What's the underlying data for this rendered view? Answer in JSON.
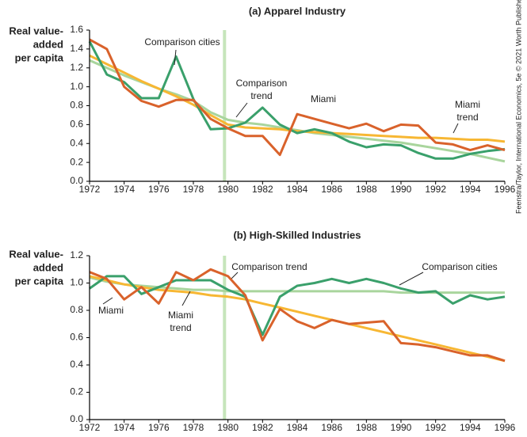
{
  "source_note": "Feenstra/Taylor, International Economics, 5e © 2021 Worth Publishers",
  "chart_data": [
    {
      "type": "line",
      "title": "(a) Apparel Industry",
      "y_label": [
        "Real value-",
        "added",
        "per capita"
      ],
      "x": [
        1972,
        1973,
        1974,
        1975,
        1976,
        1977,
        1978,
        1979,
        1980,
        1981,
        1982,
        1983,
        1984,
        1985,
        1986,
        1987,
        1988,
        1989,
        1990,
        1991,
        1992,
        1993,
        1994,
        1995,
        1996
      ],
      "xlim": [
        1972,
        1996
      ],
      "xticks": [
        1972,
        1974,
        1976,
        1978,
        1980,
        1982,
        1984,
        1986,
        1988,
        1990,
        1992,
        1994,
        1996
      ],
      "ylim": [
        0,
        1.6
      ],
      "yticks": [
        {
          "value": 0,
          "label": "0.0"
        },
        0.2,
        0.4,
        0.6,
        0.8,
        {
          "value": 1,
          "label": "1.0"
        },
        1.2,
        1.4,
        1.6
      ],
      "highlight_x": 1979.8,
      "highlight_color": "#c6e5bb",
      "series": [
        {
          "name": "Comparison trend",
          "color": "#a9d59d",
          "values": [
            1.28,
            1.2,
            1.12,
            1.05,
            0.98,
            0.92,
            0.85,
            0.73,
            0.65,
            0.62,
            0.6,
            0.57,
            0.54,
            0.51,
            0.49,
            0.47,
            0.45,
            0.43,
            0.41,
            0.38,
            0.35,
            0.32,
            0.29,
            0.25,
            0.21
          ]
        },
        {
          "name": "Miami trend",
          "color": "#f7b733",
          "values": [
            1.33,
            1.24,
            1.15,
            1.06,
            0.98,
            0.9,
            0.81,
            0.7,
            0.6,
            0.57,
            0.56,
            0.55,
            0.53,
            0.52,
            0.51,
            0.5,
            0.49,
            0.48,
            0.47,
            0.46,
            0.46,
            0.45,
            0.44,
            0.44,
            0.42
          ]
        },
        {
          "name": "Comparison cities",
          "color": "#3aa06b",
          "values": [
            1.48,
            1.13,
            1.05,
            0.88,
            0.88,
            1.32,
            0.87,
            0.55,
            0.56,
            0.62,
            0.78,
            0.6,
            0.51,
            0.55,
            0.51,
            0.42,
            0.36,
            0.39,
            0.38,
            0.3,
            0.24,
            0.24,
            0.29,
            0.32,
            0.34
          ]
        },
        {
          "name": "Miami",
          "color": "#d9622b",
          "values": [
            1.5,
            1.4,
            1.0,
            0.85,
            0.79,
            0.86,
            0.86,
            0.66,
            0.56,
            0.48,
            0.48,
            0.28,
            0.71,
            0.66,
            0.61,
            0.56,
            0.61,
            0.53,
            0.6,
            0.59,
            0.41,
            0.39,
            0.33,
            0.38,
            0.33
          ]
        }
      ]
    },
    {
      "type": "line",
      "title": "(b) High-Skilled Industries",
      "y_label": [
        "Real value-",
        "added",
        "per capita"
      ],
      "x": [
        1972,
        1973,
        1974,
        1975,
        1976,
        1977,
        1978,
        1979,
        1980,
        1981,
        1982,
        1983,
        1984,
        1985,
        1986,
        1987,
        1988,
        1989,
        1990,
        1991,
        1992,
        1993,
        1994,
        1995,
        1996
      ],
      "xlim": [
        1972,
        1996
      ],
      "xticks": [
        1972,
        1974,
        1976,
        1978,
        1980,
        1982,
        1984,
        1986,
        1988,
        1990,
        1992,
        1994,
        1996
      ],
      "ylim": [
        0,
        1.2
      ],
      "yticks": [
        {
          "value": 0,
          "label": "0.0"
        },
        0.2,
        0.4,
        0.6,
        0.8,
        {
          "value": 1,
          "label": "1.0"
        },
        1.2
      ],
      "highlight_x": 1979.8,
      "highlight_color": "#c6e5bb",
      "series": [
        {
          "name": "Comparison trend",
          "color": "#a9d59d",
          "values": [
            1.04,
            1.01,
            0.99,
            0.98,
            0.97,
            0.96,
            0.95,
            0.95,
            0.94,
            0.94,
            0.94,
            0.94,
            0.94,
            0.94,
            0.94,
            0.94,
            0.94,
            0.94,
            0.93,
            0.93,
            0.93,
            0.93,
            0.93,
            0.93,
            0.93
          ]
        },
        {
          "name": "Miami trend",
          "color": "#f7b733",
          "values": [
            1.05,
            1.02,
            0.99,
            0.97,
            0.95,
            0.94,
            0.93,
            0.91,
            0.9,
            0.88,
            0.85,
            0.82,
            0.79,
            0.76,
            0.73,
            0.7,
            0.67,
            0.64,
            0.61,
            0.58,
            0.55,
            0.52,
            0.49,
            0.46,
            0.43
          ]
        },
        {
          "name": "Comparison cities",
          "color": "#3aa06b",
          "values": [
            0.96,
            1.05,
            1.05,
            0.92,
            0.97,
            1.02,
            1.02,
            1.02,
            0.95,
            0.9,
            0.62,
            0.9,
            0.98,
            1.0,
            1.03,
            1.0,
            1.03,
            1.0,
            0.96,
            0.93,
            0.94,
            0.85,
            0.91,
            0.88,
            0.9
          ]
        },
        {
          "name": "Miami",
          "color": "#d9622b",
          "values": [
            1.08,
            1.03,
            0.88,
            0.97,
            0.85,
            1.08,
            1.02,
            1.1,
            1.05,
            0.91,
            0.58,
            0.81,
            0.72,
            0.67,
            0.73,
            0.7,
            0.71,
            0.72,
            0.56,
            0.55,
            0.53,
            0.5,
            0.47,
            0.47,
            0.43
          ]
        }
      ]
    }
  ]
}
